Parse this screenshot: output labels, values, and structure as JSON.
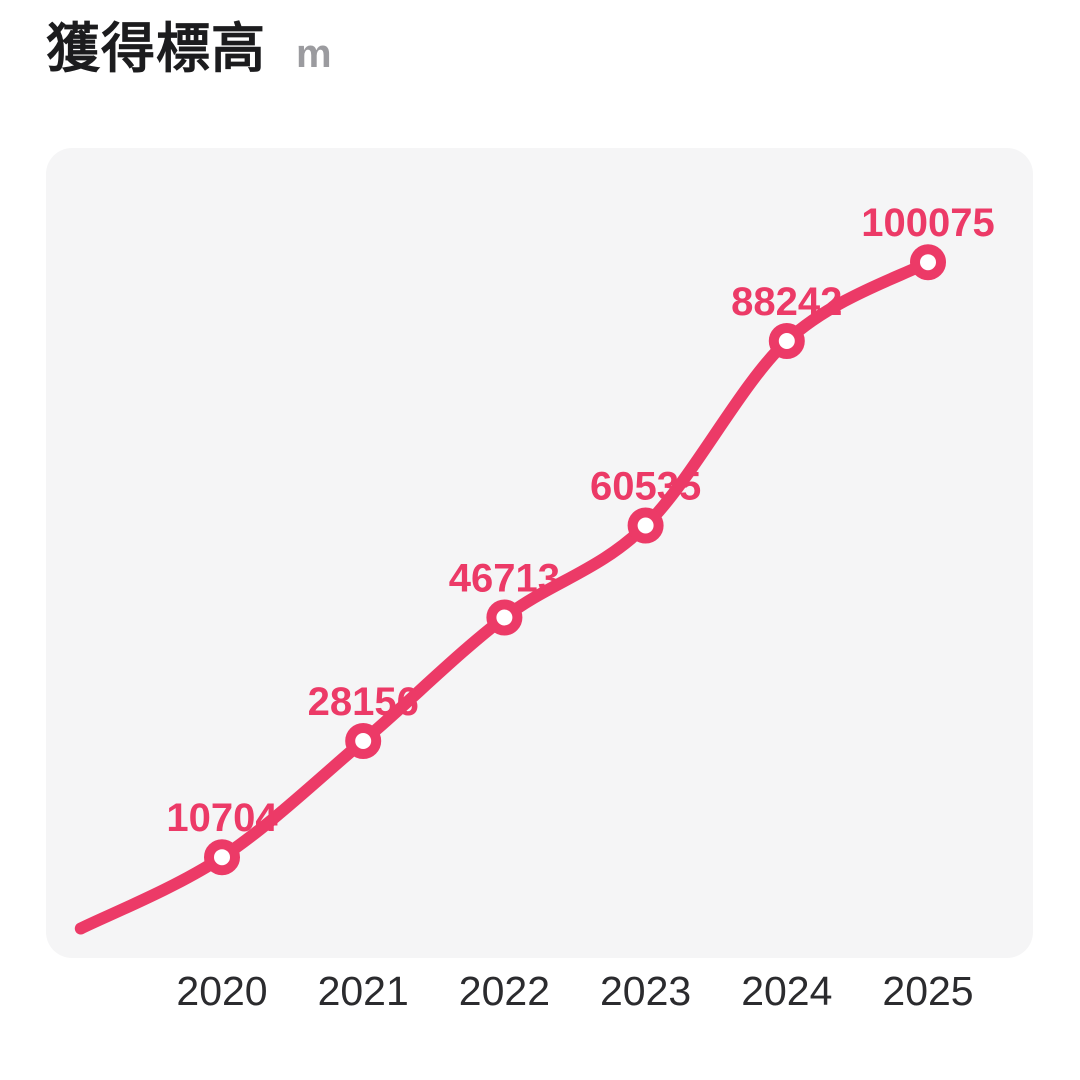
{
  "header": {
    "title": "獲得標高",
    "unit": "m"
  },
  "colors": {
    "accent": "#EC3A67",
    "card_bg": "#F5F5F6",
    "page_bg": "#FFFFFF",
    "title_text": "#1C1C1E",
    "unit_text": "#9B9B9F",
    "axis_text": "#2B2B2E"
  },
  "chart_data": {
    "type": "line",
    "title": "獲得標高",
    "ylabel": "獲得標高 (m)",
    "xlabel": "",
    "unit": "m",
    "categories": [
      "2020",
      "2021",
      "2022",
      "2023",
      "2024",
      "2025"
    ],
    "values": [
      10704,
      28156,
      46713,
      60535,
      88242,
      100075
    ],
    "data_labels": true,
    "line_start": {
      "position": "one-step-before-first-category",
      "value": 0
    },
    "marker": "open-circle",
    "line_color": "#EC3A67",
    "label_color": "#EC3A67",
    "smoothing": true,
    "legend": "none",
    "y_axis_visible": false,
    "grid": false,
    "ylim": [
      0,
      117000
    ]
  }
}
